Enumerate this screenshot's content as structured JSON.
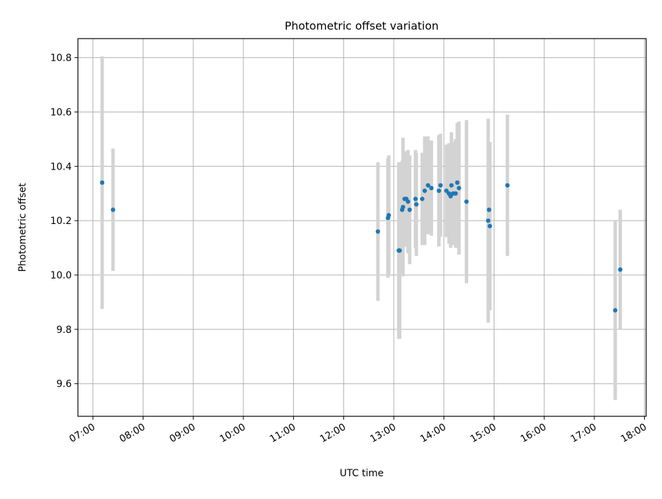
{
  "chart_data": {
    "type": "scatter",
    "title": "Photometric offset variation",
    "xlabel": "UTC time",
    "ylabel": "Photometric offset",
    "x_tick_labels": [
      "07:00",
      "08:00",
      "09:00",
      "10:00",
      "11:00",
      "12:00",
      "13:00",
      "14:00",
      "15:00",
      "16:00",
      "17:00",
      "18:00"
    ],
    "y_tick_labels": [
      "9.6",
      "9.8",
      "10.0",
      "10.2",
      "10.4",
      "10.6",
      "10.8"
    ],
    "xlim": [
      "06:42",
      "18:02"
    ],
    "ylim": [
      9.48,
      10.87
    ],
    "grid": true,
    "colors": {
      "point": "#1f77b4",
      "errorbar": "#d3d3d3",
      "grid": "#b0b0b0"
    },
    "series": [
      {
        "points": [
          {
            "x": "07:11",
            "y": 10.34,
            "err": 0.465
          },
          {
            "x": "07:24",
            "y": 10.24,
            "err": 0.225
          },
          {
            "x": "12:41",
            "y": 10.16,
            "err": 0.255
          },
          {
            "x": "12:53",
            "y": 10.21,
            "err": 0.22
          },
          {
            "x": "12:54",
            "y": 10.22,
            "err": 0.22
          },
          {
            "x": "13:06",
            "y": 10.09,
            "err": 0.325
          },
          {
            "x": "13:07",
            "y": 10.09,
            "err": 0.325
          },
          {
            "x": "13:10",
            "y": 10.24,
            "err": 0.18
          },
          {
            "x": "13:11",
            "y": 10.25,
            "err": 0.255
          },
          {
            "x": "13:13",
            "y": 10.28,
            "err": 0.175
          },
          {
            "x": "13:15",
            "y": 10.28,
            "err": 0.175
          },
          {
            "x": "13:17",
            "y": 10.27,
            "err": 0.19
          },
          {
            "x": "13:19",
            "y": 10.24,
            "err": 0.2
          },
          {
            "x": "13:26",
            "y": 10.28,
            "err": 0.18
          },
          {
            "x": "13:27",
            "y": 10.26,
            "err": 0.19
          },
          {
            "x": "13:34",
            "y": 10.28,
            "err": 0.17
          },
          {
            "x": "13:37",
            "y": 10.31,
            "err": 0.2
          },
          {
            "x": "13:41",
            "y": 10.33,
            "err": 0.18
          },
          {
            "x": "13:45",
            "y": 10.32,
            "err": 0.175
          },
          {
            "x": "13:54",
            "y": 10.31,
            "err": 0.205
          },
          {
            "x": "13:56",
            "y": 10.33,
            "err": 0.19
          },
          {
            "x": "14:03",
            "y": 10.31,
            "err": 0.17
          },
          {
            "x": "14:06",
            "y": 10.3,
            "err": 0.185
          },
          {
            "x": "14:08",
            "y": 10.29,
            "err": 0.19
          },
          {
            "x": "14:09",
            "y": 10.33,
            "err": 0.195
          },
          {
            "x": "14:11",
            "y": 10.3,
            "err": 0.19
          },
          {
            "x": "14:14",
            "y": 10.3,
            "err": 0.2
          },
          {
            "x": "14:16",
            "y": 10.34,
            "err": 0.22
          },
          {
            "x": "14:18",
            "y": 10.32,
            "err": 0.245
          },
          {
            "x": "14:27",
            "y": 10.27,
            "err": 0.3
          },
          {
            "x": "14:53",
            "y": 10.2,
            "err": 0.375
          },
          {
            "x": "14:54",
            "y": 10.24,
            "err": 0.245
          },
          {
            "x": "14:55",
            "y": 10.18,
            "err": 0.31
          },
          {
            "x": "15:16",
            "y": 10.33,
            "err": 0.26
          },
          {
            "x": "17:25",
            "y": 9.87,
            "err": 0.33
          },
          {
            "x": "17:31",
            "y": 10.02,
            "err": 0.22
          }
        ]
      }
    ]
  }
}
